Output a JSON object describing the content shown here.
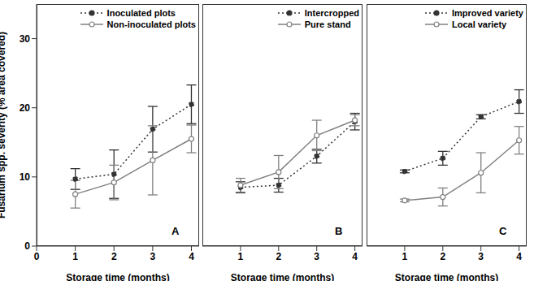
{
  "chart_data": [
    {
      "type": "line",
      "annotation": "A",
      "x": [
        1,
        2,
        3,
        4
      ],
      "xlim": [
        0,
        4.2
      ],
      "xticks": [
        0,
        1,
        2,
        3,
        4
      ],
      "ylim": [
        0,
        35
      ],
      "yticks": [
        0,
        10,
        20,
        30
      ],
      "x_label": "Storage time (months)",
      "y_label": "Fusarium spp. severity (% area covered)",
      "tick_labels": true,
      "legend": "upper left",
      "series": [
        {
          "name": "Inoculated plots",
          "color": "#333333",
          "marker": "filled",
          "line_style": "dotted",
          "values": [
            9.7,
            10.4,
            16.9,
            20.5
          ],
          "errors": [
            1.5,
            3.5,
            3.3,
            2.8
          ]
        },
        {
          "name": "Non-inoculated plots",
          "color": "#808080",
          "marker": "open",
          "line_style": "solid",
          "values": [
            7.5,
            9.2,
            12.4,
            15.5
          ],
          "errors": [
            2.0,
            2.5,
            5.0,
            2.0
          ]
        }
      ]
    },
    {
      "type": "line",
      "annotation": "B",
      "x": [
        1,
        2,
        3,
        4
      ],
      "xlim": [
        0,
        4.2
      ],
      "xticks": [
        0,
        1,
        2,
        3,
        4
      ],
      "ylim": [
        0,
        35
      ],
      "yticks": [
        0,
        10,
        20,
        30
      ],
      "x_label": "Storage time (months)",
      "tick_labels": "x",
      "legend": "upper left",
      "series": [
        {
          "name": "Intercropped",
          "color": "#333333",
          "marker": "filled",
          "line_style": "dotted",
          "values": [
            8.5,
            8.8,
            13.0,
            18.0
          ],
          "errors": [
            0.8,
            1.0,
            1.0,
            1.2
          ]
        },
        {
          "name": "Pure stand",
          "color": "#808080",
          "marker": "open",
          "line_style": "solid",
          "values": [
            8.8,
            10.7,
            16.0,
            18.2
          ],
          "errors": [
            1.0,
            2.4,
            2.2,
            0.8
          ]
        }
      ]
    },
    {
      "type": "line",
      "annotation": "C",
      "x": [
        1,
        2,
        3,
        4
      ],
      "xlim": [
        0,
        4.2
      ],
      "xticks": [
        0,
        1,
        2,
        3,
        4
      ],
      "ylim": [
        0,
        35
      ],
      "yticks": [
        0,
        10,
        20,
        30
      ],
      "x_label": "Storage time (months)",
      "tick_labels": "x",
      "legend": "upper left",
      "series": [
        {
          "name": "Improved variety",
          "color": "#333333",
          "marker": "filled",
          "line_style": "dotted",
          "values": [
            10.8,
            12.7,
            18.7,
            20.9
          ],
          "errors": [
            0.2,
            1.0,
            0.3,
            1.7
          ]
        },
        {
          "name": "Local variety",
          "color": "#808080",
          "marker": "open",
          "line_style": "solid",
          "values": [
            6.6,
            7.1,
            10.6,
            15.3
          ],
          "errors": [
            0.2,
            1.3,
            2.9,
            2.0
          ]
        }
      ]
    }
  ]
}
